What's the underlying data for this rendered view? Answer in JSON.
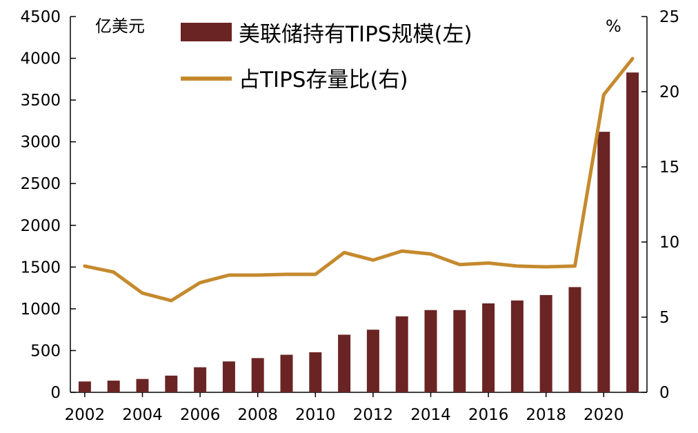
{
  "chart_data": {
    "type": "bar+line",
    "categories": [
      "2002",
      "2003",
      "2004",
      "2005",
      "2006",
      "2007",
      "2008",
      "2009",
      "2010",
      "2011",
      "2012",
      "2013",
      "2014",
      "2015",
      "2016",
      "2017",
      "2018",
      "2019",
      "2020",
      "2021"
    ],
    "x_tick_labels": [
      "2002",
      "2004",
      "2006",
      "2008",
      "2010",
      "2012",
      "2014",
      "2016",
      "2018",
      "2020"
    ],
    "series": [
      {
        "name": "美联储持有TIPS规模(左)",
        "type": "bar",
        "axis": "left",
        "color": "#6b2424",
        "values": [
          130,
          140,
          160,
          200,
          300,
          370,
          410,
          450,
          480,
          690,
          750,
          910,
          985,
          985,
          1065,
          1100,
          1165,
          1260,
          3120,
          3830
        ]
      },
      {
        "name": "占TIPS存量比(右)",
        "type": "line",
        "axis": "right",
        "color": "#c58a2e",
        "values": [
          8.4,
          8.0,
          6.6,
          6.1,
          7.3,
          7.8,
          7.8,
          7.85,
          7.85,
          9.3,
          8.8,
          9.4,
          9.2,
          8.5,
          8.6,
          8.4,
          8.35,
          8.4,
          19.8,
          22.2
        ]
      }
    ],
    "y_left": {
      "unit_label": "亿美元",
      "range": [
        0,
        4500
      ],
      "ticks": [
        0,
        500,
        1000,
        1500,
        2000,
        2500,
        3000,
        3500,
        4000,
        4500
      ]
    },
    "y_right": {
      "unit_label": "%",
      "range": [
        0,
        25
      ],
      "ticks": [
        0,
        5,
        10,
        15,
        20,
        25
      ]
    },
    "grid": false,
    "legend_position": "top-center"
  }
}
